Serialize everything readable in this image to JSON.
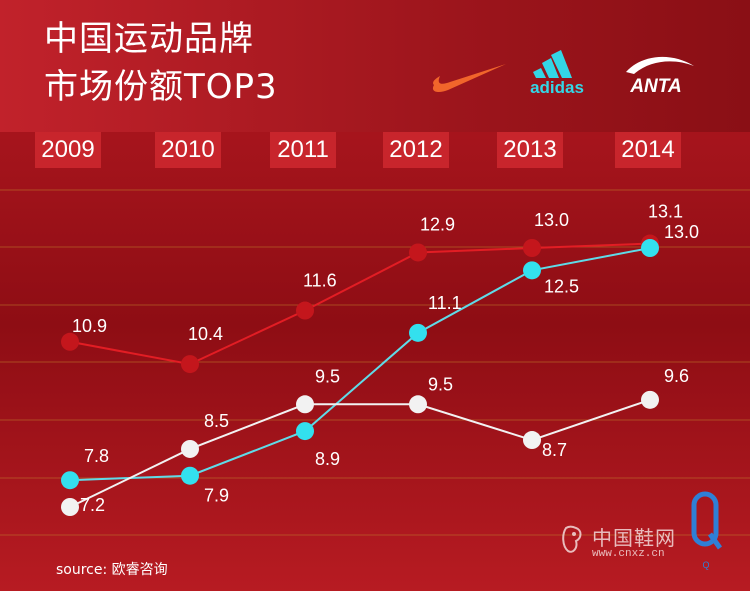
{
  "header": {
    "title_line1": "中国运动品牌",
    "title_line2": "市场份额TOP3"
  },
  "brands": {
    "nike": {
      "name": "Nike",
      "icon": "nike-swoosh-icon",
      "color": "#f1652b"
    },
    "adidas": {
      "name": "adidas",
      "icon": "adidas-logo-icon",
      "color": "#33d6e6"
    },
    "anta": {
      "name": "ANTA",
      "icon": "anta-logo-icon",
      "color": "#ffffff"
    }
  },
  "chart_data": {
    "type": "line",
    "title": "中国运动品牌市场份额TOP3",
    "xlabel": "",
    "ylabel": "",
    "x": [
      "2009",
      "2010",
      "2011",
      "2012",
      "2013",
      "2014"
    ],
    "ylim": [
      6.5,
      14.0
    ],
    "grid": true,
    "series": [
      {
        "name": "Nike",
        "color": "#c4161c",
        "values": [
          10.9,
          10.4,
          11.6,
          12.9,
          13.0,
          13.1
        ]
      },
      {
        "name": "adidas",
        "color": "#33d6e6",
        "values": [
          7.8,
          7.9,
          8.9,
          11.1,
          12.5,
          13.0
        ]
      },
      {
        "name": "ANTA",
        "color": "#f2f2f2",
        "values": [
          7.2,
          8.5,
          9.5,
          9.5,
          8.7,
          9.6
        ]
      }
    ],
    "labels": {
      "Nike": [
        "10.9",
        "10.4",
        "11.6",
        "12.9",
        "13.0",
        "13.1"
      ],
      "adidas": [
        "7.8",
        "7.9",
        "8.9",
        "11.1",
        "12.5",
        "13.0"
      ],
      "ANTA": [
        "7.2",
        "8.5",
        "9.5",
        "9.5",
        "8.7",
        "9.6"
      ]
    }
  },
  "footer": {
    "source": "source: 欧睿咨询"
  },
  "watermark": {
    "site_name": "中国鞋网",
    "site_url": "www.cnxz.cn",
    "logo_letter": "Q"
  }
}
